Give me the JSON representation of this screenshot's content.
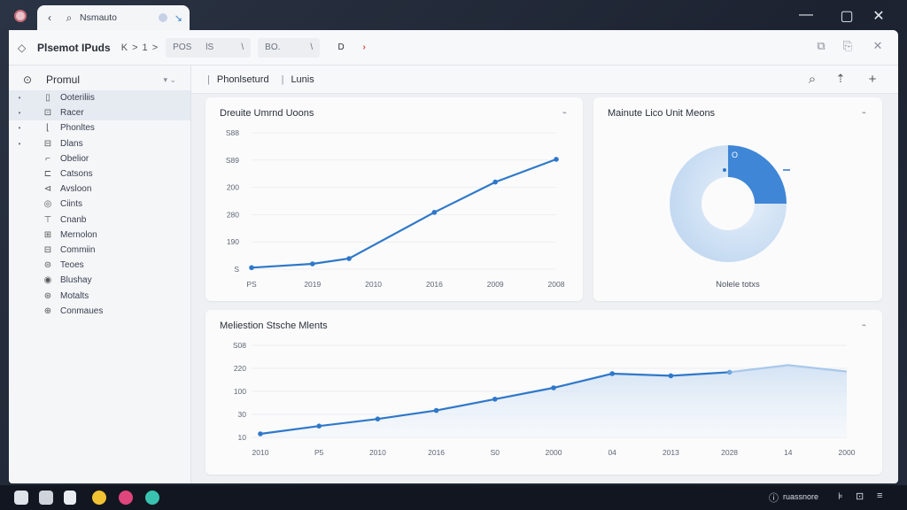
{
  "titlebar": {
    "tab_label": "Nsmauto",
    "tab_left_icon": "back-arrow-icon",
    "tab_search_icon": "search-icon",
    "tab_close_glyph": "↘",
    "window_buttons": [
      "—",
      "▢",
      "✕"
    ]
  },
  "toolbar": {
    "title": "Plsemot IPuds",
    "nav": "K > 1 >",
    "field1": "POS",
    "field1_suffix": "lS",
    "field1_end": "\\",
    "field2": "BO.",
    "field2_end": "\\",
    "btn1": "D",
    "btn2": "›",
    "right_icons": [
      "expand-icon",
      "copy-icon",
      "close-icon"
    ]
  },
  "sidebar": {
    "title": "Promul",
    "option": "▾ ⌄",
    "items": [
      {
        "label": "Ooteriliis",
        "icon": "▯",
        "bullet": "•",
        "highlight": true
      },
      {
        "label": "Racer",
        "icon": "⊡",
        "bullet": "•",
        "highlight": true
      },
      {
        "label": "Phonltes",
        "icon": "⌊",
        "bullet": "•",
        "highlight": false
      },
      {
        "label": "Dlans",
        "icon": "⊟",
        "bullet": "•",
        "highlight": false
      },
      {
        "label": "Obelior",
        "icon": "⌐",
        "bullet": "",
        "highlight": false
      },
      {
        "label": "Catsons",
        "icon": "⊏",
        "bullet": "",
        "highlight": false
      },
      {
        "label": "Avsloon",
        "icon": "⊲",
        "bullet": "",
        "highlight": false
      },
      {
        "label": "Ciints",
        "icon": "◎",
        "bullet": "",
        "highlight": false
      },
      {
        "label": "Cnanb",
        "icon": "⊤",
        "bullet": "",
        "highlight": false
      },
      {
        "label": "Mernolon",
        "icon": "⊞",
        "bullet": "",
        "highlight": false
      },
      {
        "label": "Commiin",
        "icon": "⊟",
        "bullet": "",
        "highlight": false
      },
      {
        "label": "Teoes",
        "icon": "⊜",
        "bullet": "",
        "highlight": false
      },
      {
        "label": "Blushay",
        "icon": "◉",
        "bullet": "",
        "highlight": false
      },
      {
        "label": "Motalts",
        "icon": "⊛",
        "bullet": "",
        "highlight": false
      },
      {
        "label": "Conmaues",
        "icon": "⊕",
        "bullet": "",
        "highlight": false
      }
    ]
  },
  "subbar": {
    "sep": "|",
    "item1": "Phonlseturd",
    "item2": "Lunis",
    "actions": [
      "search-icon",
      "export-icon",
      "add-icon"
    ]
  },
  "cards": {
    "line1_title": "Dreuite Umrnd Uoons",
    "donut_title": "Mainute Lico Unit Meons",
    "donut_label": "Nolele totxs",
    "line2_title": "Meliestion Stsche Mlents",
    "menu_glyph": "⌁"
  },
  "chart_data": [
    {
      "type": "line",
      "title": "Dreuite Umrnd Uoons",
      "y_tick_labels": [
        "S88",
        "S89",
        "200",
        "280",
        "190",
        "S"
      ],
      "x_tick_labels": [
        "PS",
        "2019",
        "2010",
        "2016",
        "2009",
        "2008"
      ],
      "points": [
        [
          0,
          0.2
        ],
        [
          1,
          0.7
        ],
        [
          1.6,
          1.4
        ],
        [
          3.0,
          7.5
        ],
        [
          4.0,
          11.5
        ],
        [
          5.0,
          14.5
        ]
      ],
      "x_range": [
        0,
        5
      ],
      "y_range": [
        0,
        18
      ]
    },
    {
      "type": "pie",
      "title": "Mainute Lico Unit Meons",
      "center_label": "O",
      "slices": [
        {
          "name": "highlight",
          "value": 25,
          "color": "#3f86d6"
        },
        {
          "name": "rest",
          "value": 75,
          "color": "#bcd5ef"
        }
      ]
    },
    {
      "type": "area",
      "title": "Meliestion Stsche Mlents",
      "y_tick_labels": [
        "S08",
        "220",
        "100",
        "30",
        "10"
      ],
      "x_tick_labels": [
        "2010",
        "P5",
        "2010",
        "2016",
        "S0",
        "2000",
        "04",
        "2013",
        "2028",
        "14",
        "2000"
      ],
      "points": [
        [
          0,
          0.5
        ],
        [
          1,
          1.6
        ],
        [
          2,
          2.6
        ],
        [
          3,
          3.8
        ],
        [
          4,
          5.4
        ],
        [
          5,
          7.0
        ],
        [
          6,
          9.0
        ],
        [
          7,
          8.7
        ],
        [
          8,
          9.2
        ],
        [
          9,
          10.2
        ],
        [
          10,
          9.3
        ]
      ],
      "marked": [
        0,
        1,
        2,
        3,
        4,
        5,
        6,
        7,
        8
      ],
      "faded_after": 8,
      "x_range": [
        0,
        10
      ],
      "y_range": [
        0,
        13
      ]
    }
  ],
  "taskbar": {
    "clock": "ruassnore",
    "icons": [
      "folder-icon",
      "trash-icon",
      "terminal-icon",
      "yellow-app-icon",
      "pink-app-icon",
      "teal-app-icon"
    ]
  }
}
